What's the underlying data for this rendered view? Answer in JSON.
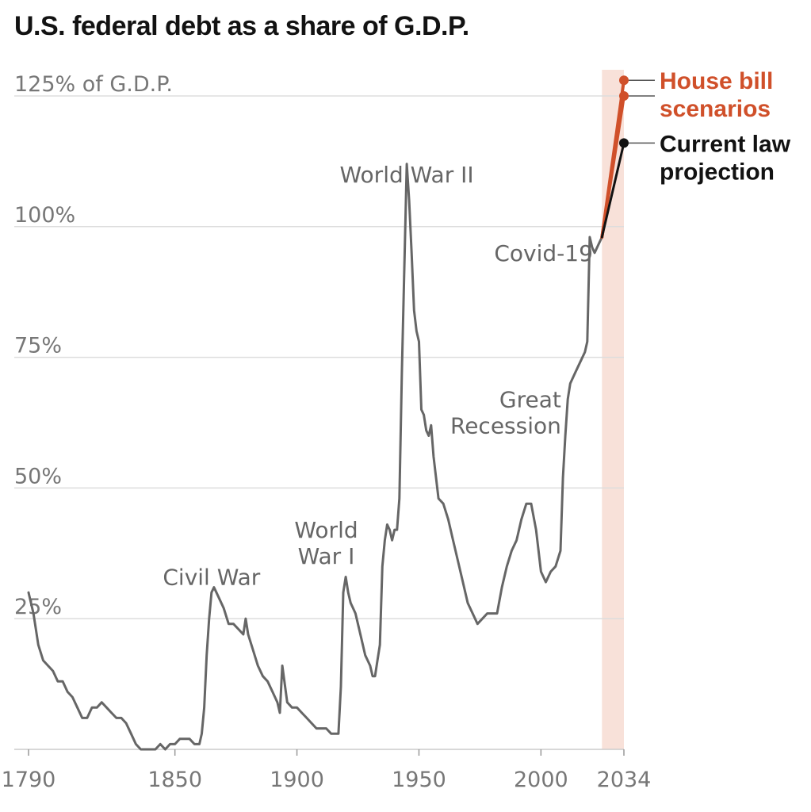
{
  "chart_data": {
    "type": "line",
    "title": "U.S. federal debt as a share of G.D.P.",
    "y_axis_label": "125% of G.D.P.",
    "yticks": [
      {
        "value": 125,
        "label": "125% of G.D.P."
      },
      {
        "value": 100,
        "label": "100%"
      },
      {
        "value": 75,
        "label": "75%"
      },
      {
        "value": 50,
        "label": "50%"
      },
      {
        "value": 25,
        "label": "25%"
      }
    ],
    "xticks": [
      {
        "value": 1790,
        "label": "1790"
      },
      {
        "value": 1850,
        "label": "1850"
      },
      {
        "value": 1900,
        "label": "1900"
      },
      {
        "value": 1950,
        "label": "1950"
      },
      {
        "value": 2000,
        "label": "2000"
      },
      {
        "value": 2034,
        "label": "2034"
      }
    ],
    "xlim": [
      1789,
      2034
    ],
    "ylim": [
      0,
      130
    ],
    "projection_band": [
      2025,
      2034
    ],
    "colors": {
      "historical": "#666666",
      "house_bill": "#d0502a",
      "current_law": "#121212",
      "band": "#f8e1d9",
      "grid": "#dddddd"
    },
    "annotations": [
      {
        "text": "Civil War",
        "x": 1865,
        "y": 33
      },
      {
        "text": "World",
        "x": 1912,
        "y": 42
      },
      {
        "text": "War I",
        "x": 1912,
        "y": 37
      },
      {
        "text": "World War II",
        "x": 1945,
        "y": 110
      },
      {
        "text": "Great",
        "x": 2007,
        "y": 67
      },
      {
        "text": "Recession",
        "x": 2007,
        "y": 62
      },
      {
        "text": "Covid-19",
        "x": 2020,
        "y": 95
      }
    ],
    "series": [
      {
        "key": "historical",
        "x": [
          1790,
          1792,
          1794,
          1796,
          1798,
          1800,
          1802,
          1804,
          1806,
          1808,
          1810,
          1812,
          1814,
          1816,
          1818,
          1820,
          1822,
          1824,
          1826,
          1828,
          1830,
          1832,
          1834,
          1836,
          1838,
          1840,
          1842,
          1844,
          1846,
          1848,
          1850,
          1852,
          1854,
          1856,
          1858,
          1860,
          1861,
          1862,
          1863,
          1864,
          1865,
          1866,
          1867,
          1868,
          1870,
          1872,
          1874,
          1876,
          1878,
          1879,
          1880,
          1882,
          1884,
          1886,
          1888,
          1890,
          1892,
          1893,
          1894,
          1896,
          1898,
          1900,
          1902,
          1904,
          1906,
          1908,
          1910,
          1912,
          1914,
          1916,
          1917,
          1918,
          1919,
          1920,
          1921,
          1922,
          1923,
          1924,
          1926,
          1928,
          1929,
          1930,
          1931,
          1932,
          1933,
          1934,
          1935,
          1936,
          1937,
          1938,
          1939,
          1940,
          1941,
          1942,
          1943,
          1944,
          1945,
          1946,
          1947,
          1948,
          1949,
          1950,
          1951,
          1952,
          1953,
          1954,
          1955,
          1956,
          1957,
          1958,
          1960,
          1962,
          1964,
          1966,
          1968,
          1970,
          1972,
          1974,
          1976,
          1978,
          1980,
          1982,
          1984,
          1986,
          1988,
          1990,
          1992,
          1994,
          1996,
          1998,
          2000,
          2002,
          2004,
          2006,
          2008,
          2009,
          2010,
          2011,
          2012,
          2014,
          2016,
          2018,
          2019,
          2020,
          2021,
          2022,
          2023,
          2024,
          2025
        ],
        "y": [
          30,
          26,
          20,
          17,
          16,
          15,
          13,
          13,
          11,
          10,
          8,
          6,
          6,
          8,
          8,
          9,
          8,
          7,
          6,
          6,
          5,
          3,
          1,
          0,
          0,
          0,
          0,
          1,
          0,
          1,
          1,
          2,
          2,
          2,
          1,
          1,
          3,
          8,
          18,
          25,
          30,
          31,
          30,
          29,
          27,
          24,
          24,
          23,
          22,
          25,
          22,
          19,
          16,
          14,
          13,
          11,
          9,
          7,
          16,
          9,
          8,
          8,
          7,
          6,
          5,
          4,
          4,
          4,
          3,
          3,
          3,
          12,
          30,
          33,
          30,
          28,
          27,
          26,
          22,
          18,
          17,
          16,
          14,
          14,
          17,
          20,
          35,
          40,
          43,
          42,
          40,
          42,
          42,
          48,
          72,
          92,
          112,
          105,
          95,
          84,
          80,
          78,
          65,
          64,
          61,
          60,
          62,
          56,
          52,
          48,
          47,
          44,
          40,
          36,
          32,
          28,
          26,
          24,
          25,
          26,
          26,
          26,
          31,
          35,
          38,
          40,
          44,
          47,
          47,
          42,
          34,
          32,
          34,
          35,
          38,
          52,
          60,
          67,
          70,
          72,
          74,
          76,
          78,
          98,
          96,
          95,
          96,
          97,
          98
        ]
      },
      {
        "key": "house_bill_1",
        "x": [
          2025,
          2034
        ],
        "y": [
          98,
          128
        ]
      },
      {
        "key": "house_bill_2",
        "x": [
          2025,
          2034
        ],
        "y": [
          98,
          125
        ]
      },
      {
        "key": "current_law",
        "x": [
          2025,
          2034
        ],
        "y": [
          98,
          116
        ]
      }
    ],
    "scenario_labels": [
      {
        "key": "house_bill",
        "lines": [
          "House bill",
          "scenarios"
        ]
      },
      {
        "key": "current_law",
        "lines": [
          "Current law",
          "projection"
        ]
      }
    ]
  }
}
